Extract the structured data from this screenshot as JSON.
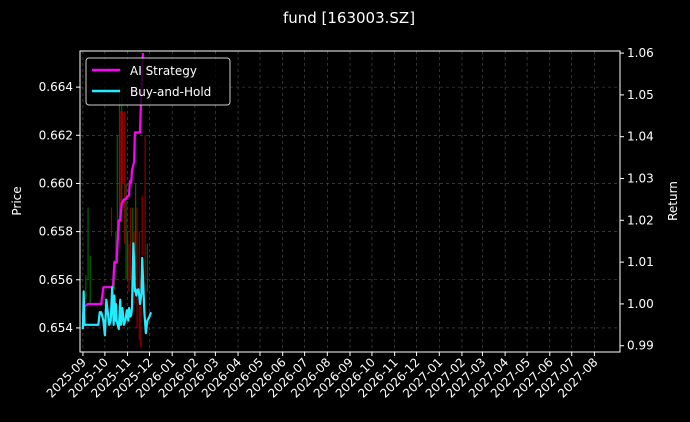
{
  "chart_data": {
    "type": "line",
    "title": "fund [163003.SZ]",
    "ylabel_left": "Price",
    "ylabel_right": "Return",
    "xlim": [
      "2025-08-28",
      "2027-09-05"
    ],
    "ylim_left": [
      0.653,
      0.6655
    ],
    "ylim_right": [
      0.9885,
      1.0605
    ],
    "grid": true,
    "legend_placement": "top-left",
    "x_tick_labels": [
      "2025-09",
      "2025-10",
      "2025-11",
      "2025-12",
      "2026-01",
      "2026-02",
      "2026-03",
      "2026-04",
      "2026-05",
      "2026-06",
      "2026-07",
      "2026-08",
      "2026-09",
      "2026-10",
      "2026-11",
      "2026-12",
      "2027-01",
      "2027-02",
      "2027-03",
      "2027-04",
      "2027-05",
      "2027-06",
      "2027-07",
      "2027-08"
    ],
    "y_tick_labels_left": [
      "0.654",
      "0.656",
      "0.658",
      "0.660",
      "0.662",
      "0.664"
    ],
    "y_tick_values_left": [
      0.654,
      0.656,
      0.658,
      0.66,
      0.662,
      0.664
    ],
    "y_tick_labels_right": [
      "0.99",
      "1.00",
      "1.01",
      "1.02",
      "1.03",
      "1.04",
      "1.05",
      "1.06"
    ],
    "y_tick_values_right": [
      0.99,
      1.0,
      1.01,
      1.02,
      1.03,
      1.04,
      1.05,
      1.06
    ],
    "series": [
      {
        "name": "AI Strategy",
        "color": "#ff00ff",
        "axis": "right",
        "points": [
          [
            "2025-09-01",
            0.994
          ],
          [
            "2025-09-02",
            0.999
          ],
          [
            "2025-09-04",
            0.9995
          ],
          [
            "2025-09-08",
            1.0
          ],
          [
            "2025-09-12",
            1.0
          ],
          [
            "2025-09-20",
            1.0
          ],
          [
            "2025-09-26",
            1.0
          ],
          [
            "2025-09-29",
            1.004
          ],
          [
            "2025-10-09",
            1.004
          ],
          [
            "2025-10-12",
            1.004
          ],
          [
            "2025-10-14",
            1.01
          ],
          [
            "2025-10-17",
            1.01
          ],
          [
            "2025-10-20",
            1.02
          ],
          [
            "2025-10-22",
            1.02
          ],
          [
            "2025-10-24",
            1.024
          ],
          [
            "2025-10-27",
            1.025
          ],
          [
            "2025-10-29",
            1.025
          ],
          [
            "2025-10-31",
            1.0255
          ],
          [
            "2025-11-03",
            1.026
          ],
          [
            "2025-11-04",
            1.029
          ],
          [
            "2025-11-05",
            1.0295
          ],
          [
            "2025-11-06",
            1.029
          ],
          [
            "2025-11-07",
            1.032
          ],
          [
            "2025-11-10",
            1.034
          ],
          [
            "2025-11-11",
            1.041
          ],
          [
            "2025-11-14",
            1.041
          ],
          [
            "2025-11-18",
            1.041
          ],
          [
            "2025-11-20",
            1.052
          ],
          [
            "2025-11-22",
            1.06
          ]
        ]
      },
      {
        "name": "Buy-and-Hold",
        "color": "#22ecff",
        "axis": "right",
        "points": [
          [
            "2025-09-01",
            0.994
          ],
          [
            "2025-09-02",
            1.003
          ],
          [
            "2025-09-03",
            0.995
          ],
          [
            "2025-09-05",
            0.995
          ],
          [
            "2025-09-08",
            0.995
          ],
          [
            "2025-09-15",
            0.995
          ],
          [
            "2025-09-19",
            0.995
          ],
          [
            "2025-09-22",
            0.995
          ],
          [
            "2025-09-24",
            0.998
          ],
          [
            "2025-09-26",
            0.998
          ],
          [
            "2025-09-29",
            0.996
          ],
          [
            "2025-10-01",
            0.9925
          ],
          [
            "2025-10-03",
            1.001
          ],
          [
            "2025-10-07",
            0.995
          ],
          [
            "2025-10-09",
            0.996
          ],
          [
            "2025-10-11",
            1.004
          ],
          [
            "2025-10-13",
            0.995
          ],
          [
            "2025-10-14",
            1.002
          ],
          [
            "2025-10-15",
            0.996
          ],
          [
            "2025-10-16",
            1.0
          ],
          [
            "2025-10-17",
            0.996
          ],
          [
            "2025-10-20",
            0.994
          ],
          [
            "2025-10-22",
            1.001
          ],
          [
            "2025-10-23",
            0.995
          ],
          [
            "2025-10-25",
            0.999
          ],
          [
            "2025-10-27",
            0.995
          ],
          [
            "2025-10-29",
            0.996
          ],
          [
            "2025-10-31",
            0.9985
          ],
          [
            "2025-11-02",
            0.996
          ],
          [
            "2025-11-03",
            0.999
          ],
          [
            "2025-11-05",
            0.997
          ],
          [
            "2025-11-06",
            0.9975
          ],
          [
            "2025-11-07",
            0.999
          ],
          [
            "2025-11-09",
            1.0145
          ],
          [
            "2025-11-11",
            1.003
          ],
          [
            "2025-11-12",
            1.0035
          ],
          [
            "2025-11-13",
            1.002
          ],
          [
            "2025-11-14",
            1.003
          ],
          [
            "2025-11-16",
            1.0035
          ],
          [
            "2025-11-18",
            1.0
          ],
          [
            "2025-11-20",
            1.0025
          ],
          [
            "2025-11-21",
            1.011
          ],
          [
            "2025-11-24",
            0.998
          ],
          [
            "2025-11-26",
            0.993
          ],
          [
            "2025-11-28",
            0.996
          ],
          [
            "2025-12-01",
            0.997
          ],
          [
            "2025-12-03",
            0.998
          ]
        ]
      }
    ],
    "candles": [
      {
        "x": "2025-09-02",
        "low": 0.6545,
        "high": 0.6555,
        "color": "#006400"
      },
      {
        "x": "2025-09-05",
        "low": 0.6552,
        "high": 0.6562,
        "color": "#006400"
      },
      {
        "x": "2025-09-08",
        "low": 0.656,
        "high": 0.659,
        "color": "#006400"
      },
      {
        "x": "2025-09-11",
        "low": 0.655,
        "high": 0.657,
        "color": "#006400"
      },
      {
        "x": "2025-10-10",
        "low": 0.6578,
        "high": 0.659,
        "color": "#8b0000"
      },
      {
        "x": "2025-10-14",
        "low": 0.6556,
        "high": 0.6568,
        "color": "#006400"
      },
      {
        "x": "2025-10-16",
        "low": 0.656,
        "high": 0.658,
        "color": "#006400"
      },
      {
        "x": "2025-10-18",
        "low": 0.657,
        "high": 0.662,
        "color": "#006400"
      },
      {
        "x": "2025-10-21",
        "low": 0.658,
        "high": 0.664,
        "color": "#006400"
      },
      {
        "x": "2025-10-22",
        "low": 0.659,
        "high": 0.663,
        "color": "#8b0000"
      },
      {
        "x": "2025-10-24",
        "low": 0.659,
        "high": 0.664,
        "color": "#006400"
      },
      {
        "x": "2025-10-25",
        "low": 0.66,
        "high": 0.663,
        "color": "#8b0000"
      },
      {
        "x": "2025-10-28",
        "low": 0.6575,
        "high": 0.663,
        "color": "#8b0000"
      },
      {
        "x": "2025-10-30",
        "low": 0.656,
        "high": 0.66,
        "color": "#006400"
      },
      {
        "x": "2025-11-01",
        "low": 0.656,
        "high": 0.658,
        "color": "#006400"
      },
      {
        "x": "2025-11-03",
        "low": 0.6555,
        "high": 0.6575,
        "color": "#8b0000"
      },
      {
        "x": "2025-11-05",
        "low": 0.656,
        "high": 0.659,
        "color": "#8b0000"
      },
      {
        "x": "2025-11-08",
        "low": 0.657,
        "high": 0.659,
        "color": "#006400"
      },
      {
        "x": "2025-11-10",
        "low": 0.655,
        "high": 0.658,
        "color": "#8b0000"
      },
      {
        "x": "2025-11-12",
        "low": 0.656,
        "high": 0.66,
        "color": "#006400"
      },
      {
        "x": "2025-11-14",
        "low": 0.654,
        "high": 0.659,
        "color": "#8b0000"
      },
      {
        "x": "2025-11-17",
        "low": 0.6535,
        "high": 0.658,
        "color": "#8b0000"
      },
      {
        "x": "2025-11-19",
        "low": 0.6532,
        "high": 0.656,
        "color": "#8b0000"
      },
      {
        "x": "2025-11-21",
        "low": 0.657,
        "high": 0.6595,
        "color": "#8b0000"
      },
      {
        "x": "2025-11-25",
        "low": 0.656,
        "high": 0.662,
        "color": "#8b0000"
      },
      {
        "x": "2025-11-28",
        "low": 0.6555,
        "high": 0.6575,
        "color": "#006400"
      }
    ]
  }
}
